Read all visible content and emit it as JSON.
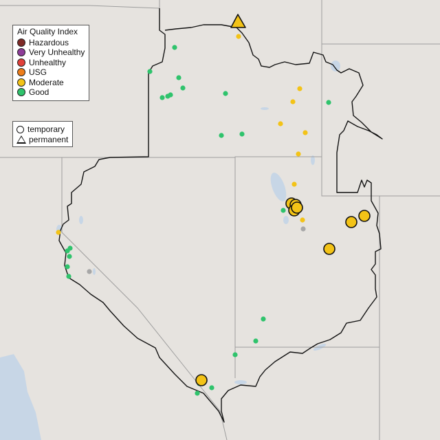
{
  "legend": {
    "title": "Air Quality Index",
    "categories": [
      {
        "label": "Hazardous",
        "color": "#7e2a26"
      },
      {
        "label": "Very Unhealthy",
        "color": "#8e3d99"
      },
      {
        "label": "Unhealthy",
        "color": "#e0403a"
      },
      {
        "label": "USG",
        "color": "#ed7d1a"
      },
      {
        "label": "Moderate",
        "color": "#f3c317"
      },
      {
        "label": "Good",
        "color": "#2fc36c"
      }
    ]
  },
  "monitor_legend": {
    "temporary": "temporary",
    "permanent": "permanent"
  },
  "colors": {
    "land": "#e6e3df",
    "water": "#c7d6e6",
    "state_lines": "#9d9d9d",
    "region_outline": "#111111",
    "sensor_gray": "#a7a7a7"
  }
}
